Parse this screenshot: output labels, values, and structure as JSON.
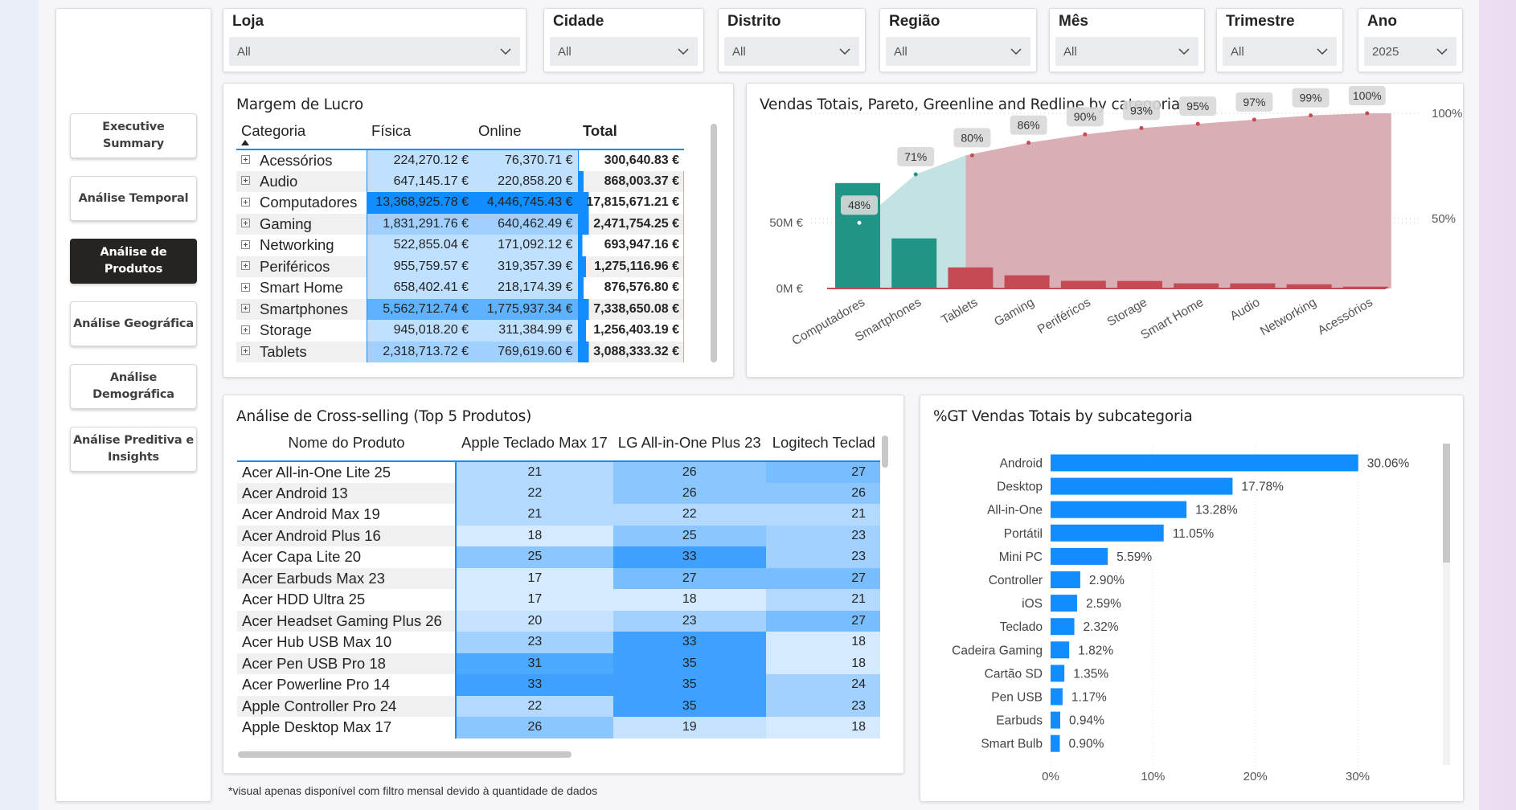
{
  "nav": {
    "items": [
      {
        "label": "Executive Summary",
        "active": false
      },
      {
        "label": "Análise Temporal",
        "active": false
      },
      {
        "label": "Análise de Produtos",
        "active": true
      },
      {
        "label": "Análise Geográfica",
        "active": false
      },
      {
        "label": "Análise Demográfica",
        "active": false
      },
      {
        "label": "Análise Preditiva e Insights",
        "active": false
      }
    ]
  },
  "filters": [
    {
      "label": "Loja",
      "value": "All"
    },
    {
      "label": "Cidade",
      "value": "All"
    },
    {
      "label": "Distrito",
      "value": "All"
    },
    {
      "label": "Região",
      "value": "All"
    },
    {
      "label": "Mês",
      "value": "All"
    },
    {
      "label": "Trimestre",
      "value": "All"
    },
    {
      "label": "Ano",
      "value": "2025"
    }
  ],
  "margin_table": {
    "title": "Margem de Lucro",
    "columns": [
      "Categoria",
      "Física",
      "Online",
      "Total"
    ],
    "rows": [
      {
        "cat": "Acessórios",
        "fisica": "224,270.12 €",
        "online": "76,370.71 €",
        "total": "300,640.83 €",
        "f": 0.017,
        "o": 0.017,
        "t": 0.017
      },
      {
        "cat": "Audio",
        "fisica": "647,145.17 €",
        "online": "220,858.20 €",
        "total": "868,003.37 €",
        "f": 0.048,
        "o": 0.05,
        "t": 0.049
      },
      {
        "cat": "Computadores",
        "fisica": "13,368,925.78 €",
        "online": "4,446,745.43 €",
        "total": "17,815,671.21 €",
        "f": 1.0,
        "o": 1.0,
        "t": 1.0
      },
      {
        "cat": "Gaming",
        "fisica": "1,831,291.76 €",
        "online": "640,462.49 €",
        "total": "2,471,754.25 €",
        "f": 0.137,
        "o": 0.144,
        "t": 0.139
      },
      {
        "cat": "Networking",
        "fisica": "522,855.04 €",
        "online": "171,092.12 €",
        "total": "693,947.16 €",
        "f": 0.039,
        "o": 0.038,
        "t": 0.039
      },
      {
        "cat": "Periféricos",
        "fisica": "955,759.57 €",
        "online": "319,357.39 €",
        "total": "1,275,116.96 €",
        "f": 0.071,
        "o": 0.072,
        "t": 0.072
      },
      {
        "cat": "Smart Home",
        "fisica": "658,402.41 €",
        "online": "218,174.39 €",
        "total": "876,576.80 €",
        "f": 0.049,
        "o": 0.049,
        "t": 0.049
      },
      {
        "cat": "Smartphones",
        "fisica": "5,562,712.74 €",
        "online": "1,775,937.34 €",
        "total": "7,338,650.08 €",
        "f": 0.416,
        "o": 0.4,
        "t": 0.412
      },
      {
        "cat": "Storage",
        "fisica": "945,018.20 €",
        "online": "311,384.99 €",
        "total": "1,256,403.19 €",
        "f": 0.071,
        "o": 0.07,
        "t": 0.071
      },
      {
        "cat": "Tablets",
        "fisica": "2,318,713.72 €",
        "online": "769,619.60 €",
        "total": "3,088,333.32 €",
        "f": 0.173,
        "o": 0.173,
        "t": 0.173
      }
    ]
  },
  "pareto": {
    "title": "Vendas Totais, Pareto, Greenline and Redline by categoria",
    "y_left_ticks": [
      "0M €",
      "50M €"
    ],
    "y_right_ticks": [
      "50%",
      "100%"
    ]
  },
  "chart_data": [
    {
      "type": "bar",
      "title": "Vendas Totais, Pareto, Greenline and Redline by categoria",
      "categories": [
        "Computadores",
        "Smartphones",
        "Tablets",
        "Gaming",
        "Periféricos",
        "Storage",
        "Smart Home",
        "Audio",
        "Networking",
        "Acessórios"
      ],
      "values": [
        80,
        38,
        16,
        10,
        5.8,
        5.7,
        3.9,
        3.9,
        3.2,
        1.4
      ],
      "y_unit": "M €",
      "ylim": [
        0,
        98
      ],
      "pareto_pct": [
        48,
        71,
        80,
        86,
        90,
        93,
        95,
        97,
        99,
        100
      ],
      "pareto_labels": [
        "48%",
        "71%",
        "80%",
        "86%",
        "90%",
        "93%",
        "95%",
        "97%",
        "99%",
        "100%"
      ],
      "y2lim": [
        0,
        120
      ],
      "colors": {
        "green": "#1f9487",
        "red": "#c44a54",
        "green_area": "#b8dedd",
        "red_area": "#d4a0a8"
      }
    },
    {
      "type": "bar",
      "orientation": "horizontal",
      "title": "%GT Vendas Totais by subcategoria",
      "categories": [
        "Android",
        "Desktop",
        "All-in-One",
        "Portátil",
        "Mini PC",
        "Controller",
        "iOS",
        "Teclado",
        "Cadeira Gaming",
        "Cartão SD",
        "Pen USB",
        "Earbuds",
        "Smart Bulb"
      ],
      "values": [
        30.06,
        17.78,
        13.28,
        11.05,
        5.59,
        2.9,
        2.59,
        2.32,
        1.82,
        1.35,
        1.17,
        0.94,
        0.9
      ],
      "labels": [
        "30.06%",
        "17.78%",
        "13.28%",
        "11.05%",
        "5.59%",
        "2.90%",
        "2.59%",
        "2.32%",
        "1.82%",
        "1.35%",
        "1.17%",
        "0.94%",
        "0.90%"
      ],
      "xlim": [
        0,
        30
      ],
      "x_ticks": [
        "0%",
        "10%",
        "20%",
        "30%"
      ],
      "color": "#118dff"
    }
  ],
  "cross": {
    "title": "Análise de Cross-selling (Top 5 Produtos)",
    "columns": [
      "Nome do Produto",
      "Apple Teclado Max 17",
      "LG All-in-One Plus 23",
      "Logitech Teclad"
    ],
    "rows": [
      {
        "name": "Acer All-in-One Lite 25",
        "v": [
          "21",
          "26",
          "27"
        ]
      },
      {
        "name": "Acer Android 13",
        "v": [
          "22",
          "26",
          "26"
        ]
      },
      {
        "name": "Acer Android Max 19",
        "v": [
          "21",
          "22",
          "21"
        ]
      },
      {
        "name": "Acer Android Plus 16",
        "v": [
          "18",
          "25",
          "23"
        ]
      },
      {
        "name": "Acer Capa Lite 20",
        "v": [
          "25",
          "33",
          "23"
        ]
      },
      {
        "name": "Acer Earbuds Max 23",
        "v": [
          "17",
          "27",
          "27"
        ]
      },
      {
        "name": "Acer HDD Ultra 25",
        "v": [
          "17",
          "18",
          "21"
        ]
      },
      {
        "name": "Acer Headset Gaming Plus 26",
        "v": [
          "20",
          "23",
          "27"
        ]
      },
      {
        "name": "Acer Hub USB Max 10",
        "v": [
          "23",
          "33",
          "18"
        ]
      },
      {
        "name": "Acer Pen USB Pro 18",
        "v": [
          "31",
          "35",
          "18"
        ]
      },
      {
        "name": "Acer Powerline Pro 14",
        "v": [
          "33",
          "35",
          "24"
        ]
      },
      {
        "name": "Apple Controller Pro 24",
        "v": [
          "22",
          "35",
          "23"
        ]
      },
      {
        "name": "Apple Desktop Max 17",
        "v": [
          "26",
          "19",
          "18"
        ]
      }
    ]
  },
  "gt_title": "%GT Vendas Totais by subcategoria",
  "footnote": "*visual apenas disponível com filtro mensal devido à quantidade de dados"
}
